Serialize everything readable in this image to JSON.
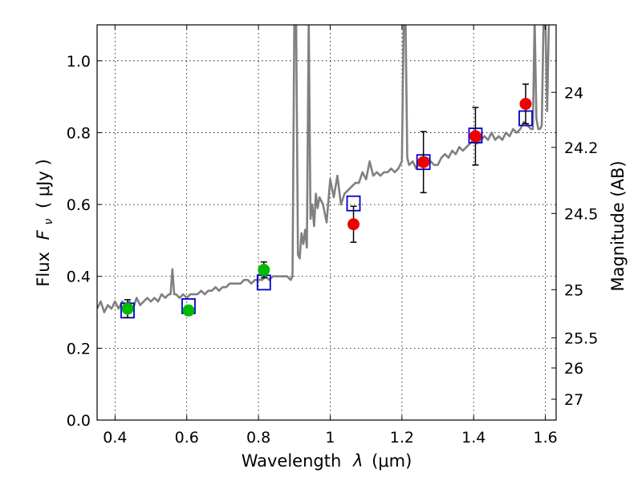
{
  "chart_data": {
    "type": "scatter",
    "xlabel_text": "Wavelength",
    "xlabel_symbol": "λ",
    "xlabel_unit": "(μm)",
    "ylabel_text": "Flux",
    "ylabel_symbol": "F",
    "ylabel_sub": "ν",
    "ylabel_unit": "( μJy )",
    "y2label": "Magnitude (AB)",
    "xlim": [
      0.35,
      1.63
    ],
    "ylim": [
      0.0,
      1.1
    ],
    "xticks": [
      0.4,
      0.6,
      0.8,
      1.0,
      1.2,
      1.4,
      1.6
    ],
    "xtick_labels": [
      "0.4",
      "0.6",
      "0.8",
      "1",
      "1.2",
      "1.4",
      "1.6"
    ],
    "yticks": [
      0.0,
      0.2,
      0.4,
      0.6,
      0.8,
      1.0
    ],
    "ytick_labels": [
      "0.0",
      "0.2",
      "0.4",
      "0.6",
      "0.8",
      "1.0"
    ],
    "y2ticks": [
      {
        "label": "24",
        "flux": 0.912
      },
      {
        "label": "24.2",
        "flux": 0.759
      },
      {
        "label": "24.5",
        "flux": 0.575
      },
      {
        "label": "25",
        "flux": 0.363
      },
      {
        "label": "25.5",
        "flux": 0.229
      },
      {
        "label": "26",
        "flux": 0.145
      },
      {
        "label": "27",
        "flux": 0.058
      }
    ],
    "grid": true,
    "series": [
      {
        "name": "template_spectrum",
        "kind": "line",
        "color": "#808080",
        "points": [
          [
            0.35,
            0.31
          ],
          [
            0.36,
            0.33
          ],
          [
            0.37,
            0.3
          ],
          [
            0.38,
            0.32
          ],
          [
            0.39,
            0.31
          ],
          [
            0.4,
            0.33
          ],
          [
            0.41,
            0.31
          ],
          [
            0.42,
            0.33
          ],
          [
            0.43,
            0.32
          ],
          [
            0.44,
            0.33
          ],
          [
            0.45,
            0.31
          ],
          [
            0.46,
            0.34
          ],
          [
            0.47,
            0.32
          ],
          [
            0.48,
            0.33
          ],
          [
            0.49,
            0.34
          ],
          [
            0.5,
            0.33
          ],
          [
            0.51,
            0.34
          ],
          [
            0.52,
            0.33
          ],
          [
            0.53,
            0.35
          ],
          [
            0.54,
            0.34
          ],
          [
            0.55,
            0.35
          ],
          [
            0.555,
            0.35
          ],
          [
            0.56,
            0.42
          ],
          [
            0.565,
            0.35
          ],
          [
            0.57,
            0.35
          ],
          [
            0.58,
            0.34
          ],
          [
            0.59,
            0.35
          ],
          [
            0.6,
            0.34
          ],
          [
            0.61,
            0.35
          ],
          [
            0.62,
            0.35
          ],
          [
            0.63,
            0.35
          ],
          [
            0.64,
            0.36
          ],
          [
            0.65,
            0.35
          ],
          [
            0.66,
            0.36
          ],
          [
            0.67,
            0.36
          ],
          [
            0.68,
            0.37
          ],
          [
            0.69,
            0.36
          ],
          [
            0.7,
            0.37
          ],
          [
            0.71,
            0.37
          ],
          [
            0.72,
            0.38
          ],
          [
            0.73,
            0.38
          ],
          [
            0.74,
            0.38
          ],
          [
            0.75,
            0.38
          ],
          [
            0.76,
            0.39
          ],
          [
            0.77,
            0.39
          ],
          [
            0.78,
            0.38
          ],
          [
            0.79,
            0.39
          ],
          [
            0.8,
            0.39
          ],
          [
            0.81,
            0.39
          ],
          [
            0.82,
            0.4
          ],
          [
            0.83,
            0.39
          ],
          [
            0.84,
            0.4
          ],
          [
            0.85,
            0.4
          ],
          [
            0.86,
            0.4
          ],
          [
            0.87,
            0.4
          ],
          [
            0.88,
            0.4
          ],
          [
            0.89,
            0.39
          ],
          [
            0.895,
            0.4
          ],
          [
            0.9,
            1.12
          ],
          [
            0.905,
            1.12
          ],
          [
            0.91,
            0.46
          ],
          [
            0.915,
            0.45
          ],
          [
            0.92,
            0.52
          ],
          [
            0.925,
            0.49
          ],
          [
            0.93,
            0.53
          ],
          [
            0.935,
            0.48
          ],
          [
            0.94,
            1.12
          ],
          [
            0.945,
            0.56
          ],
          [
            0.95,
            0.6
          ],
          [
            0.955,
            0.54
          ],
          [
            0.96,
            0.63
          ],
          [
            0.965,
            0.59
          ],
          [
            0.97,
            0.62
          ],
          [
            0.98,
            0.6
          ],
          [
            0.99,
            0.55
          ],
          [
            1.0,
            0.67
          ],
          [
            1.01,
            0.62
          ],
          [
            1.02,
            0.68
          ],
          [
            1.03,
            0.6
          ],
          [
            1.04,
            0.63
          ],
          [
            1.05,
            0.64
          ],
          [
            1.06,
            0.65
          ],
          [
            1.07,
            0.66
          ],
          [
            1.08,
            0.66
          ],
          [
            1.09,
            0.69
          ],
          [
            1.1,
            0.67
          ],
          [
            1.11,
            0.72
          ],
          [
            1.12,
            0.68
          ],
          [
            1.13,
            0.69
          ],
          [
            1.14,
            0.68
          ],
          [
            1.15,
            0.69
          ],
          [
            1.16,
            0.69
          ],
          [
            1.17,
            0.7
          ],
          [
            1.18,
            0.69
          ],
          [
            1.19,
            0.7
          ],
          [
            1.2,
            0.72
          ],
          [
            1.205,
            1.12
          ],
          [
            1.21,
            1.12
          ],
          [
            1.215,
            0.73
          ],
          [
            1.22,
            0.71
          ],
          [
            1.23,
            0.72
          ],
          [
            1.24,
            0.7
          ],
          [
            1.25,
            0.72
          ],
          [
            1.26,
            0.71
          ],
          [
            1.27,
            0.73
          ],
          [
            1.28,
            0.72
          ],
          [
            1.29,
            0.71
          ],
          [
            1.3,
            0.71
          ],
          [
            1.31,
            0.73
          ],
          [
            1.32,
            0.74
          ],
          [
            1.33,
            0.73
          ],
          [
            1.34,
            0.75
          ],
          [
            1.35,
            0.74
          ],
          [
            1.36,
            0.76
          ],
          [
            1.37,
            0.75
          ],
          [
            1.38,
            0.76
          ],
          [
            1.39,
            0.77
          ],
          [
            1.4,
            0.78
          ],
          [
            1.41,
            0.77
          ],
          [
            1.42,
            0.78
          ],
          [
            1.43,
            0.79
          ],
          [
            1.44,
            0.78
          ],
          [
            1.45,
            0.8
          ],
          [
            1.46,
            0.78
          ],
          [
            1.47,
            0.79
          ],
          [
            1.48,
            0.78
          ],
          [
            1.49,
            0.8
          ],
          [
            1.5,
            0.79
          ],
          [
            1.51,
            0.81
          ],
          [
            1.52,
            0.8
          ],
          [
            1.53,
            0.81
          ],
          [
            1.54,
            0.83
          ],
          [
            1.55,
            0.82
          ],
          [
            1.56,
            0.81
          ],
          [
            1.565,
            0.81
          ],
          [
            1.57,
            1.12
          ],
          [
            1.575,
            0.84
          ],
          [
            1.58,
            0.81
          ],
          [
            1.585,
            0.81
          ],
          [
            1.59,
            0.82
          ],
          [
            1.595,
            1.12
          ],
          [
            1.6,
            1.12
          ],
          [
            1.605,
            0.86
          ],
          [
            1.61,
            1.12
          ]
        ]
      },
      {
        "name": "model_photometry",
        "kind": "marker",
        "marker": "square",
        "color": "#0000cc",
        "x": [
          0.435,
          0.605,
          0.815,
          1.065,
          1.26,
          1.405,
          1.545
        ],
        "y": [
          0.305,
          0.317,
          0.383,
          0.603,
          0.718,
          0.792,
          0.84
        ]
      },
      {
        "name": "observed_optical",
        "kind": "marker",
        "marker": "circle",
        "color": "#00bb00",
        "x": [
          0.435,
          0.605,
          0.815
        ],
        "y": [
          0.31,
          0.305,
          0.418
        ],
        "yerr": [
          0.025,
          0.013,
          0.022
        ]
      },
      {
        "name": "observed_nir",
        "kind": "marker",
        "marker": "circle",
        "color": "#ee0000",
        "x": [
          1.065,
          1.26,
          1.405,
          1.545
        ],
        "y": [
          0.545,
          0.718,
          0.79,
          0.88
        ],
        "yerr": [
          0.05,
          0.085,
          0.08,
          0.055
        ]
      }
    ]
  }
}
